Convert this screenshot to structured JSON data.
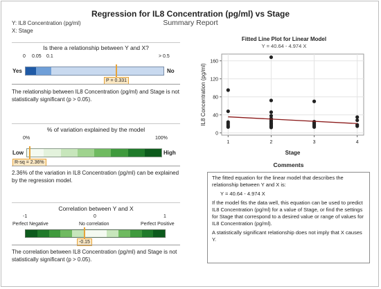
{
  "report": {
    "title": "Regression for IL8 Concentration (pg/ml) vs Stage",
    "subtitle": "Summary Report",
    "y_variable": "Y: IL8 Concentration (pg/ml)",
    "x_variable": "X: Stage"
  },
  "relationship": {
    "title": "Is there a relationship between Y and X?",
    "scale_labels": [
      "0",
      "0.05",
      "0.1",
      "> 0.5"
    ],
    "left_label": "Yes",
    "right_label": "No",
    "p_value": 0.331,
    "p_label": "P = 0.331",
    "note": "The relationship between IL8 Concentration (pg/ml) and Stage is not statistically significant (p > 0.05)."
  },
  "variation": {
    "title": "% of variation explained by the model",
    "scale_labels": [
      "0%",
      "100%"
    ],
    "left_label": "Low",
    "right_label": "High",
    "r_sq_percent": 2.36,
    "r_sq_label": "R-sq = 2.36%",
    "note": "2.36% of the variation in IL8 Concentration (pg/ml) can be explained by the regression model."
  },
  "correlation": {
    "title": "Correlation between Y and X",
    "scale_labels": [
      "-1",
      "0",
      "1"
    ],
    "left_label": "Perfect Negative",
    "middle_label": "No correlation",
    "right_label": "Perfect Positive",
    "r": -0.15,
    "r_label": "-0.15",
    "note": "The correlation between IL8 Concentration (pg/ml) and Stage is not statistically significant (p > 0.05)."
  },
  "chart_data": {
    "type": "scatter",
    "title": "Fitted Line Plot for Linear Model",
    "subtitle": "Y = 40.64 - 4.974 X",
    "xlabel": "Stage",
    "ylabel": "IL8 Concentration (pg/ml)",
    "x_ticks": [
      1,
      2,
      3,
      4
    ],
    "y_ticks": [
      0,
      40,
      80,
      120,
      160
    ],
    "xlim": [
      0.85,
      4.15
    ],
    "ylim": [
      -5,
      175
    ],
    "grid": true,
    "points": [
      {
        "x": 1,
        "y": 95
      },
      {
        "x": 1,
        "y": 48
      },
      {
        "x": 1,
        "y": 24
      },
      {
        "x": 1,
        "y": 20
      },
      {
        "x": 1,
        "y": 16
      },
      {
        "x": 1,
        "y": 13
      },
      {
        "x": 2,
        "y": 168
      },
      {
        "x": 2,
        "y": 72
      },
      {
        "x": 2,
        "y": 46
      },
      {
        "x": 2,
        "y": 38
      },
      {
        "x": 2,
        "y": 32
      },
      {
        "x": 2,
        "y": 28
      },
      {
        "x": 2,
        "y": 25
      },
      {
        "x": 2,
        "y": 22
      },
      {
        "x": 2,
        "y": 20
      },
      {
        "x": 2,
        "y": 18
      },
      {
        "x": 2,
        "y": 16
      },
      {
        "x": 2,
        "y": 14
      },
      {
        "x": 2,
        "y": 12
      },
      {
        "x": 3,
        "y": 70
      },
      {
        "x": 3,
        "y": 25
      },
      {
        "x": 3,
        "y": 22
      },
      {
        "x": 3,
        "y": 19
      },
      {
        "x": 3,
        "y": 16
      },
      {
        "x": 3,
        "y": 13
      },
      {
        "x": 4,
        "y": 35
      },
      {
        "x": 4,
        "y": 28
      },
      {
        "x": 4,
        "y": 18
      },
      {
        "x": 4,
        "y": 15
      }
    ],
    "fit_line": {
      "intercept": 40.64,
      "slope": -4.974,
      "x_range": [
        1,
        4
      ]
    }
  },
  "comments": {
    "title": "Comments",
    "p1": "The fitted equation for the linear model that describes the relationship between Y and X is:",
    "equation": "Y = 40.64 - 4.974 X",
    "p2": "If the model fits the data well, this equation can be used to predict IL8 Concentration (pg/ml) for a value of Stage, or find the settings for Stage that correspond to a desired value or range of values for IL8 Concentration (pg/ml).",
    "p3": "A statistically significant relationship does not imply that X causes Y."
  },
  "colors": {
    "dark_blue": "#1f5aa6",
    "mid_blue": "#6f9fd8",
    "light_blue": "#c8d9ef",
    "orange": "#e5a33a",
    "fit_line": "#8b1a1a"
  }
}
